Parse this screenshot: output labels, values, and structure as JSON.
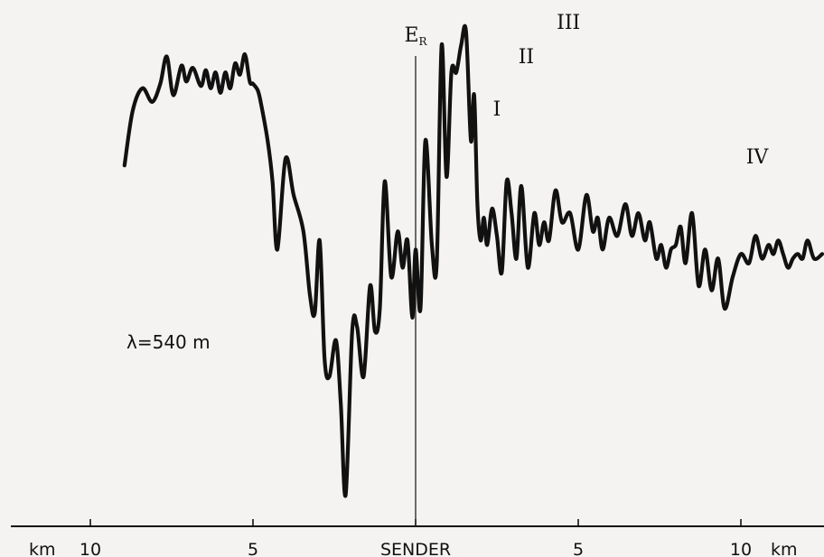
{
  "chart_data": {
    "type": "line",
    "title": "",
    "xlabel": "",
    "ylabel": "",
    "y_quantity": {
      "symbol": "E",
      "subscript": "R"
    },
    "annotation": "λ=540 m",
    "xlim": [
      -10,
      10
    ],
    "ylim": [
      0,
      1
    ],
    "grid": false,
    "x_ticks": [
      {
        "value": -10,
        "label": "10"
      },
      {
        "value": -5,
        "label": "5"
      },
      {
        "value": 0,
        "label": "SENDER"
      },
      {
        "value": 5,
        "label": "5"
      },
      {
        "value": 10,
        "label": "10"
      }
    ],
    "unit_labels": {
      "left": "km",
      "right": "km"
    },
    "peak_labels": [
      {
        "label": "I",
        "x": 2.5
      },
      {
        "label": "II",
        "x": 3.4
      },
      {
        "label": "III",
        "x": 4.7
      },
      {
        "label": "IV",
        "x": 10.5
      }
    ],
    "series": [
      {
        "x": [
          -8.95,
          -8.7,
          -8.4,
          -8.1,
          -7.85,
          -7.65,
          -7.45,
          -7.2,
          -7.05,
          -6.85,
          -6.6,
          -6.45,
          -6.3,
          -6.15,
          -6.0,
          -5.85,
          -5.7,
          -5.55,
          -5.4,
          -5.25,
          -5.1,
          -5.0,
          -4.85,
          -4.75,
          -4.55,
          -4.4,
          -4.25,
          -4.0,
          -3.75,
          -3.45,
          -3.25,
          -3.1,
          -2.95,
          -2.8,
          -2.65,
          -2.45,
          -2.3,
          -2.15,
          -1.95,
          -1.8,
          -1.6,
          -1.4,
          -1.25,
          -1.1,
          -0.95,
          -0.75,
          -0.55,
          -0.4,
          -0.25,
          -0.1,
          0.0,
          0.15,
          0.3,
          0.5,
          0.65,
          0.8,
          0.95,
          1.1,
          1.25,
          1.4,
          1.55,
          1.7,
          1.8,
          1.9,
          2.0,
          2.1,
          2.2,
          2.35,
          2.5,
          2.65,
          2.8,
          2.95,
          3.1,
          3.25,
          3.45,
          3.65,
          3.8,
          3.95,
          4.1,
          4.3,
          4.5,
          4.75,
          5.0,
          5.25,
          5.45,
          5.6,
          5.75,
          5.95,
          6.2,
          6.45,
          6.65,
          6.85,
          7.05,
          7.2,
          7.4,
          7.55,
          7.7,
          7.85,
          8.0,
          8.15,
          8.3,
          8.5,
          8.7,
          8.9,
          9.1,
          9.3,
          9.5,
          9.75,
          10.0,
          10.25,
          10.45,
          10.65,
          10.85,
          11.0,
          11.15,
          11.3,
          11.45,
          11.6,
          11.75,
          11.9,
          12.05,
          12.25,
          12.5
        ],
        "y": [
          0.725,
          0.845,
          0.895,
          0.865,
          0.905,
          0.965,
          0.88,
          0.945,
          0.91,
          0.94,
          0.9,
          0.935,
          0.895,
          0.93,
          0.885,
          0.93,
          0.895,
          0.95,
          0.925,
          0.97,
          0.91,
          0.905,
          0.89,
          0.86,
          0.78,
          0.69,
          0.54,
          0.74,
          0.66,
          0.58,
          0.44,
          0.4,
          0.56,
          0.3,
          0.26,
          0.34,
          0.2,
          0.0,
          0.36,
          0.37,
          0.26,
          0.46,
          0.36,
          0.41,
          0.69,
          0.48,
          0.58,
          0.5,
          0.56,
          0.39,
          0.54,
          0.41,
          0.78,
          0.55,
          0.51,
          0.99,
          0.7,
          0.93,
          0.93,
          0.99,
          1.02,
          0.78,
          0.88,
          0.64,
          0.56,
          0.61,
          0.55,
          0.63,
          0.57,
          0.49,
          0.69,
          0.62,
          0.52,
          0.68,
          0.5,
          0.62,
          0.55,
          0.6,
          0.56,
          0.67,
          0.6,
          0.62,
          0.54,
          0.66,
          0.58,
          0.61,
          0.54,
          0.61,
          0.57,
          0.64,
          0.57,
          0.62,
          0.56,
          0.6,
          0.52,
          0.55,
          0.5,
          0.54,
          0.55,
          0.59,
          0.51,
          0.62,
          0.46,
          0.54,
          0.45,
          0.52,
          0.41,
          0.48,
          0.53,
          0.51,
          0.57,
          0.52,
          0.55,
          0.53,
          0.56,
          0.53,
          0.5,
          0.52,
          0.53,
          0.52,
          0.56,
          0.52,
          0.53
        ]
      }
    ]
  }
}
